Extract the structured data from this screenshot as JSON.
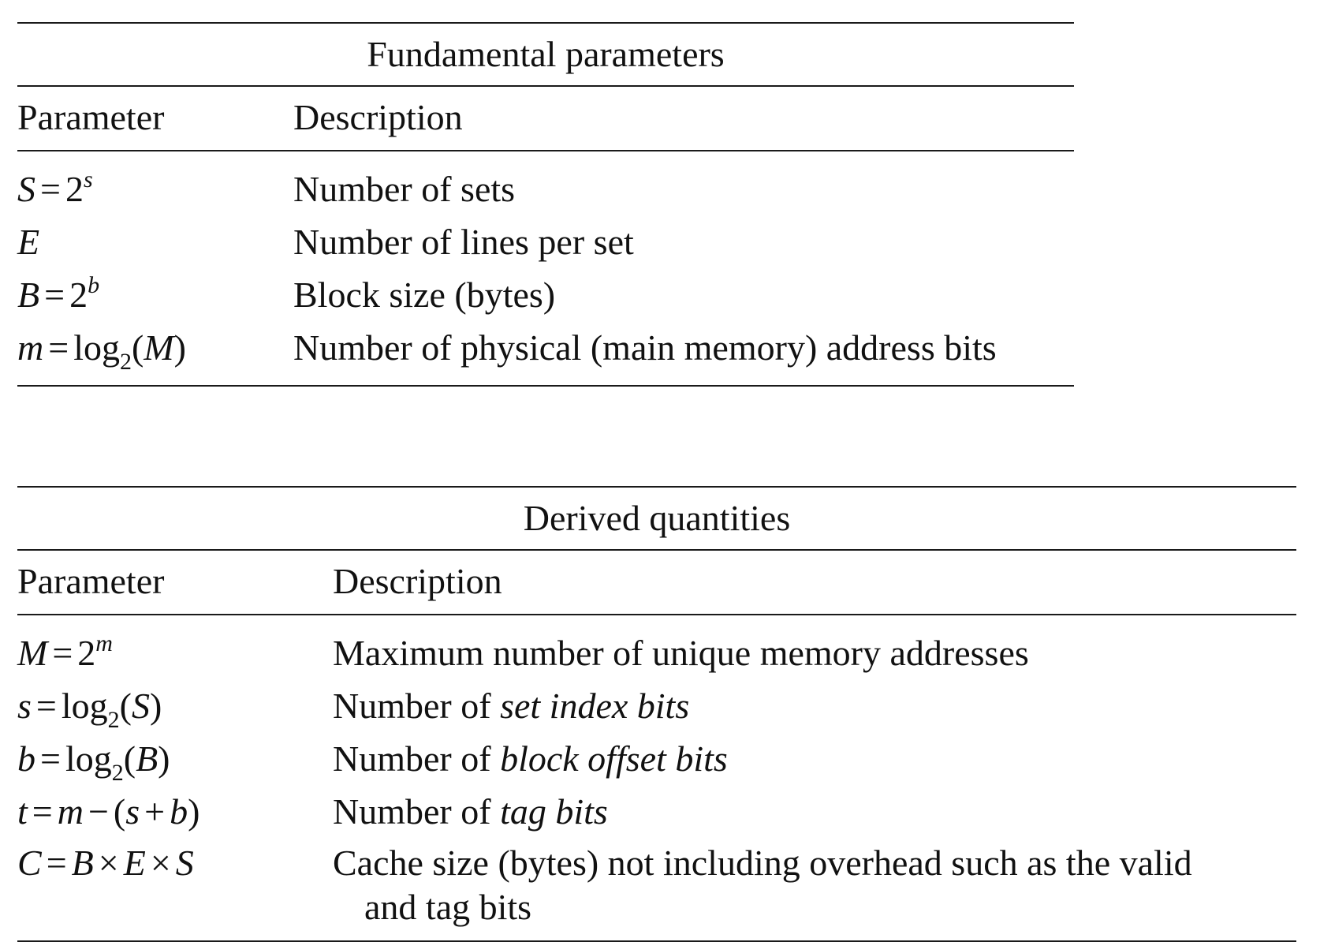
{
  "fundamental": {
    "caption": "Fundamental parameters",
    "header": {
      "parameter": "Parameter",
      "description": "Description"
    },
    "rows": [
      {
        "param": {
          "lhs": "S",
          "eq": "=",
          "base": "2",
          "sup": "s"
        },
        "description": "Number of sets"
      },
      {
        "param": {
          "lhs": "E"
        },
        "description": "Number of lines per set"
      },
      {
        "param": {
          "lhs": "B",
          "eq": "=",
          "base": "2",
          "sup": "b"
        },
        "description": "Block size (bytes)"
      },
      {
        "param": {
          "lhs": "m",
          "eq": "=",
          "fn": "log",
          "sub": "2",
          "arg_open": "(",
          "arg": "M",
          "arg_close": ")"
        },
        "description": "Number of physical (main memory) address bits"
      }
    ]
  },
  "derived": {
    "caption": "Derived quantities",
    "header": {
      "parameter": "Parameter",
      "description": "Description"
    },
    "rows": [
      {
        "param": {
          "lhs": "M",
          "eq": "=",
          "base": "2",
          "sup": "m"
        },
        "description": "Maximum number of unique memory addresses"
      },
      {
        "param": {
          "lhs": "s",
          "eq": "=",
          "fn": "log",
          "sub": "2",
          "arg_open": "(",
          "arg": "S",
          "arg_close": ")"
        },
        "description_prefix": "Number of ",
        "description_em": "set index bits"
      },
      {
        "param": {
          "lhs": "b",
          "eq": "=",
          "fn": "log",
          "sub": "2",
          "arg_open": "(",
          "arg": "B",
          "arg_close": ")"
        },
        "description_prefix": "Number of ",
        "description_em": "block offset bits"
      },
      {
        "param": {
          "lhs": "t",
          "eq": "=",
          "a": "m",
          "minus": "−",
          "open": "(",
          "b1": "s",
          "plus": "+",
          "b2": "b",
          "close": ")"
        },
        "description_prefix": "Number of ",
        "description_em": "tag bits"
      },
      {
        "param": {
          "lhs": "C",
          "eq": "=",
          "f1": "B",
          "x1": "×",
          "f2": "E",
          "x2": "×",
          "f3": "S"
        },
        "description_line1": "Cache size (bytes) not including overhead such as the valid",
        "description_line2": "and tag bits"
      }
    ]
  }
}
